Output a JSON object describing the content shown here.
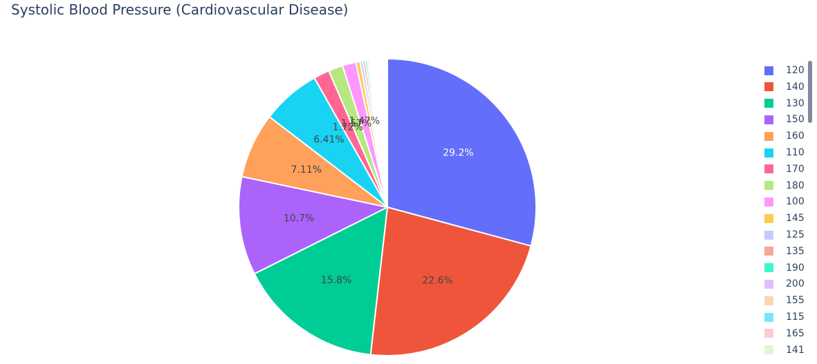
{
  "title": "Systolic Blood Pressure (Cardiovascular Disease)",
  "chart_data": {
    "type": "pie",
    "title": "Systolic Blood Pressure (Cardiovascular Disease)",
    "legend_position": "right",
    "slices": [
      {
        "label": "120",
        "value": 29.2,
        "text": "29.2%",
        "color": "#636efa",
        "text_color": "#ffffff"
      },
      {
        "label": "140",
        "value": 22.6,
        "text": "22.6%",
        "color": "#ef553b",
        "text_color": "#444444"
      },
      {
        "label": "130",
        "value": 15.8,
        "text": "15.8%",
        "color": "#00cc96",
        "text_color": "#444444"
      },
      {
        "label": "150",
        "value": 10.7,
        "text": "10.7%",
        "color": "#ab63fa",
        "text_color": "#444444"
      },
      {
        "label": "160",
        "value": 7.11,
        "text": "7.11%",
        "color": "#ffa15a",
        "text_color": "#444444"
      },
      {
        "label": "110",
        "value": 6.41,
        "text": "6.41%",
        "color": "#19d3f3",
        "text_color": "#444444"
      },
      {
        "label": "170",
        "value": 1.72,
        "text": "1.72%",
        "color": "#ff6692",
        "text_color": "#444444"
      },
      {
        "label": "180",
        "value": 1.57,
        "text": "1.57%",
        "color": "#b6e880",
        "text_color": "#444444"
      },
      {
        "label": "100",
        "value": 1.47,
        "text": "1.47%",
        "color": "#ff97ff",
        "text_color": "#444444"
      },
      {
        "label": "145",
        "value": 0.45,
        "text": "",
        "color": "#fecb52",
        "text_color": "#444444"
      },
      {
        "label": "125",
        "value": 0.32,
        "text": "",
        "color": "#c6cbfd",
        "text_color": "#444444"
      },
      {
        "label": "135",
        "value": 0.26,
        "text": "",
        "color": "#f7a799",
        "text_color": "#444444"
      },
      {
        "label": "190",
        "value": 0.22,
        "text": "",
        "color": "#3ff5cc",
        "text_color": "#444444"
      },
      {
        "label": "200",
        "value": 0.18,
        "text": "",
        "color": "#ddc1fd",
        "text_color": "#444444"
      },
      {
        "label": "155",
        "value": 0.16,
        "text": "",
        "color": "#fbd5b6",
        "text_color": "#444444"
      },
      {
        "label": "115",
        "value": 0.14,
        "text": "",
        "color": "#76e7fa",
        "text_color": "#444444"
      },
      {
        "label": "165",
        "value": 0.12,
        "text": "",
        "color": "#fdc9d9",
        "text_color": "#444444"
      },
      {
        "label": "141",
        "value": 0.1,
        "text": "",
        "color": "#e2f5cf",
        "text_color": "#444444"
      }
    ],
    "other_value": 1.46
  }
}
